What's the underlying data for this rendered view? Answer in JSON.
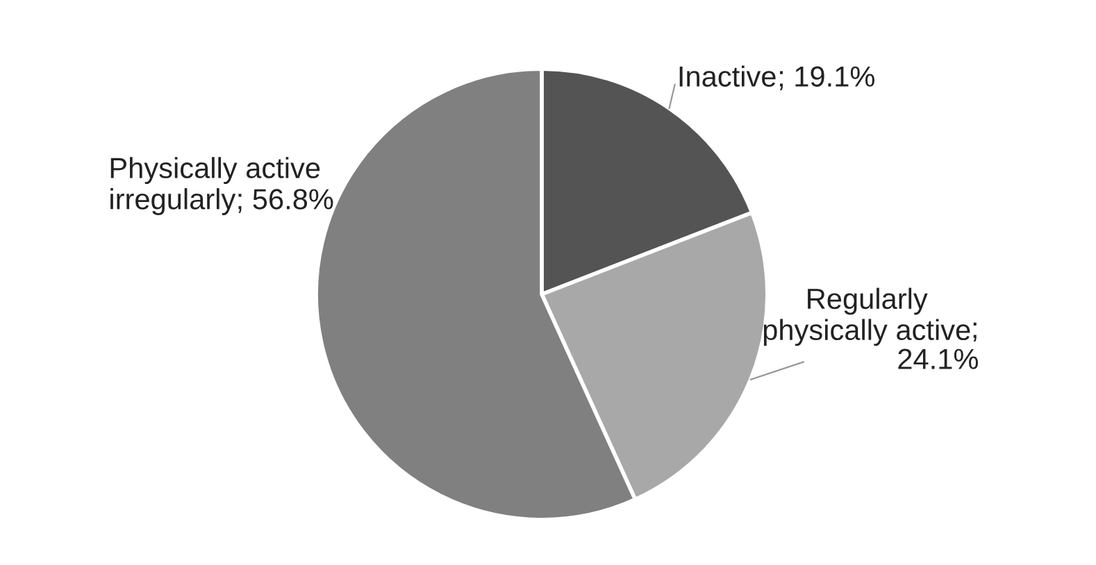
{
  "chart_data": {
    "type": "pie",
    "categories": [
      "Inactive",
      "Regularly\nphysically active",
      "Physically active\nirregularly"
    ],
    "values": [
      19.1,
      24.1,
      56.8
    ],
    "value_labels": [
      "; 19.1%",
      ";\n24.1%",
      "; 56.8%"
    ],
    "colors": [
      "#545454",
      "#a8a8a8",
      "#808080"
    ],
    "legend": false
  }
}
